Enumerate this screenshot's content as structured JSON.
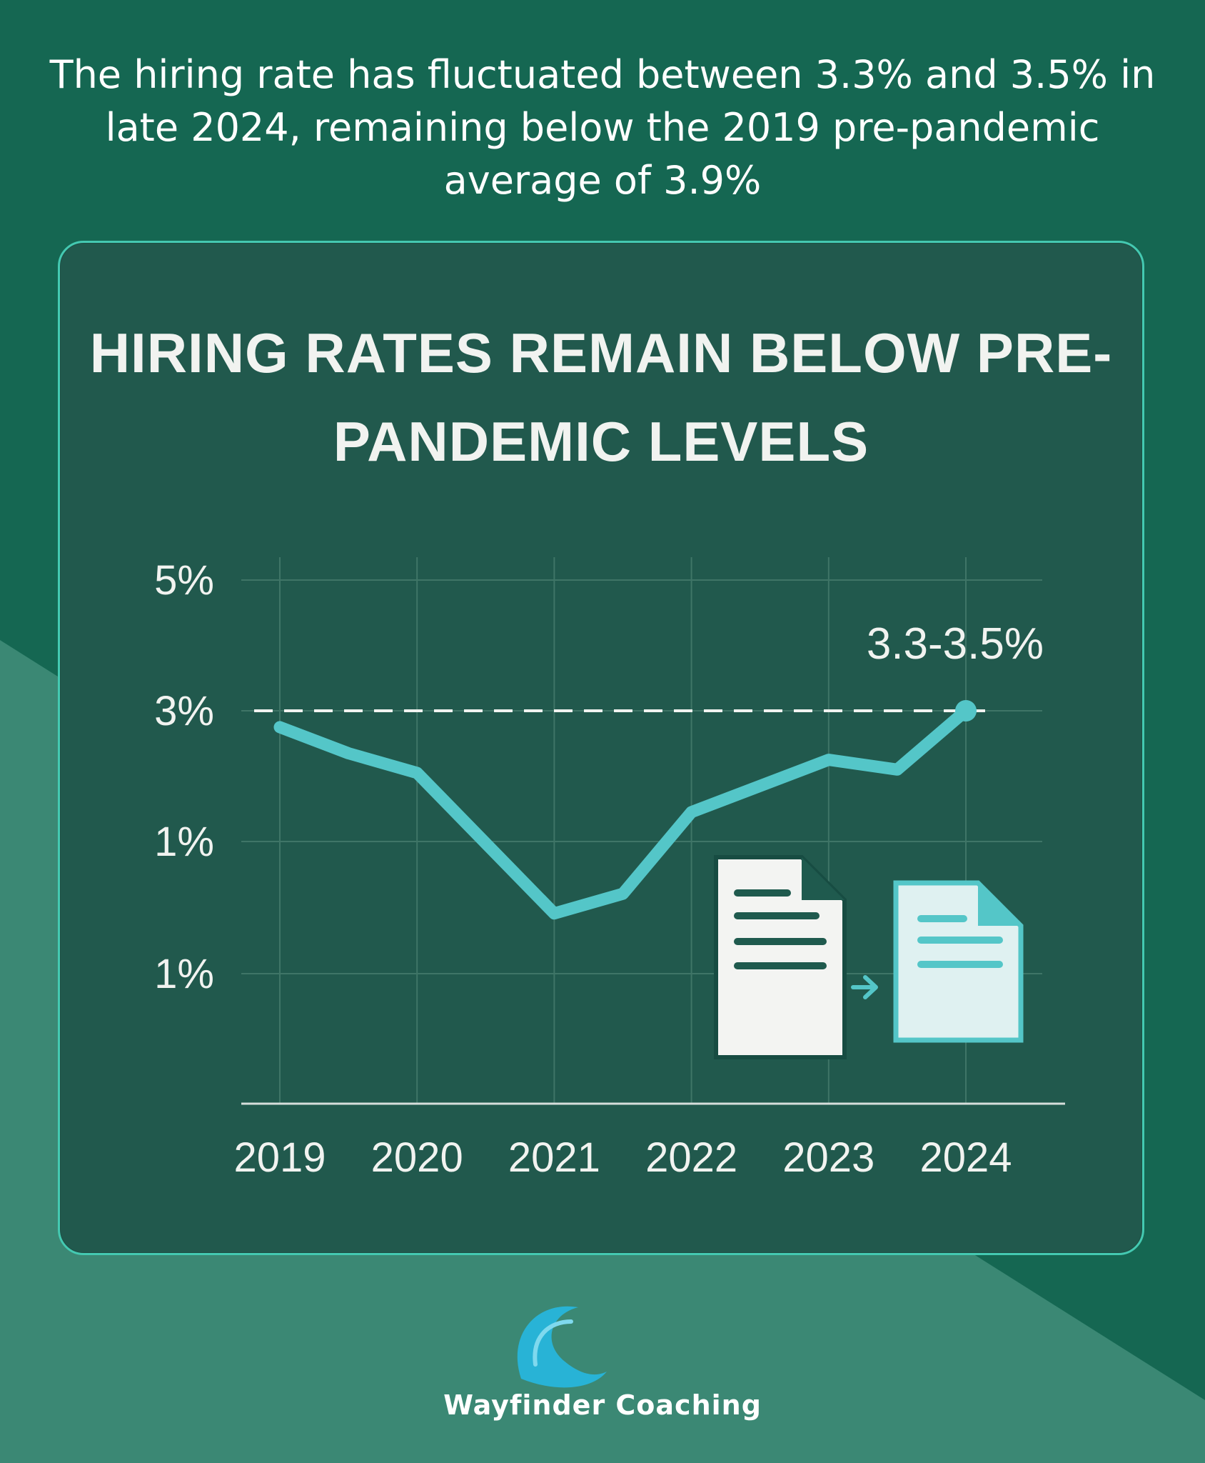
{
  "headline": "The hiring rate has fluctuated between 3.3% and 3.5% in late 2024, remaining below the 2019 pre-pandemic average of 3.9%",
  "brand": {
    "name": "Wayfinder Coaching",
    "icon": "wave-logo-icon"
  },
  "colors": {
    "background": "#156752",
    "stripe": "#3b8874",
    "card": "#21594d",
    "card_border": "#44c9b1",
    "line": "#54c6c8",
    "text": "#ffffff"
  },
  "chart_data": {
    "type": "line",
    "title": "HIRING RATES REMAIN BELOW PRE-PANDEMIC LEVELS",
    "x_ticks": [
      "2019",
      "2020",
      "2021",
      "2022",
      "2023",
      "2024"
    ],
    "y_tick_labels": [
      "5%",
      "3%",
      "1%",
      "1%"
    ],
    "series": [
      {
        "points": [
          {
            "x": 2019.0,
            "y": 2.75
          },
          {
            "x": 2019.5,
            "y": 2.35
          },
          {
            "x": 2020.0,
            "y": 2.05
          },
          {
            "x": 2021.0,
            "y": -0.1
          },
          {
            "x": 2021.5,
            "y": 0.2
          },
          {
            "x": 2022.0,
            "y": 1.45
          },
          {
            "x": 2023.0,
            "y": 2.25
          },
          {
            "x": 2023.5,
            "y": 2.1
          },
          {
            "x": 2024.0,
            "y": 3.0
          }
        ]
      }
    ],
    "reference_line": {
      "y": 3.0,
      "style": "dashed"
    },
    "annotation": {
      "text": "3.3-3.5%",
      "x": 2024.0,
      "y": 3.0
    },
    "grid": true,
    "legend": "none",
    "icons": [
      "document-icon",
      "arrow-right-icon",
      "document-copy-icon"
    ]
  }
}
